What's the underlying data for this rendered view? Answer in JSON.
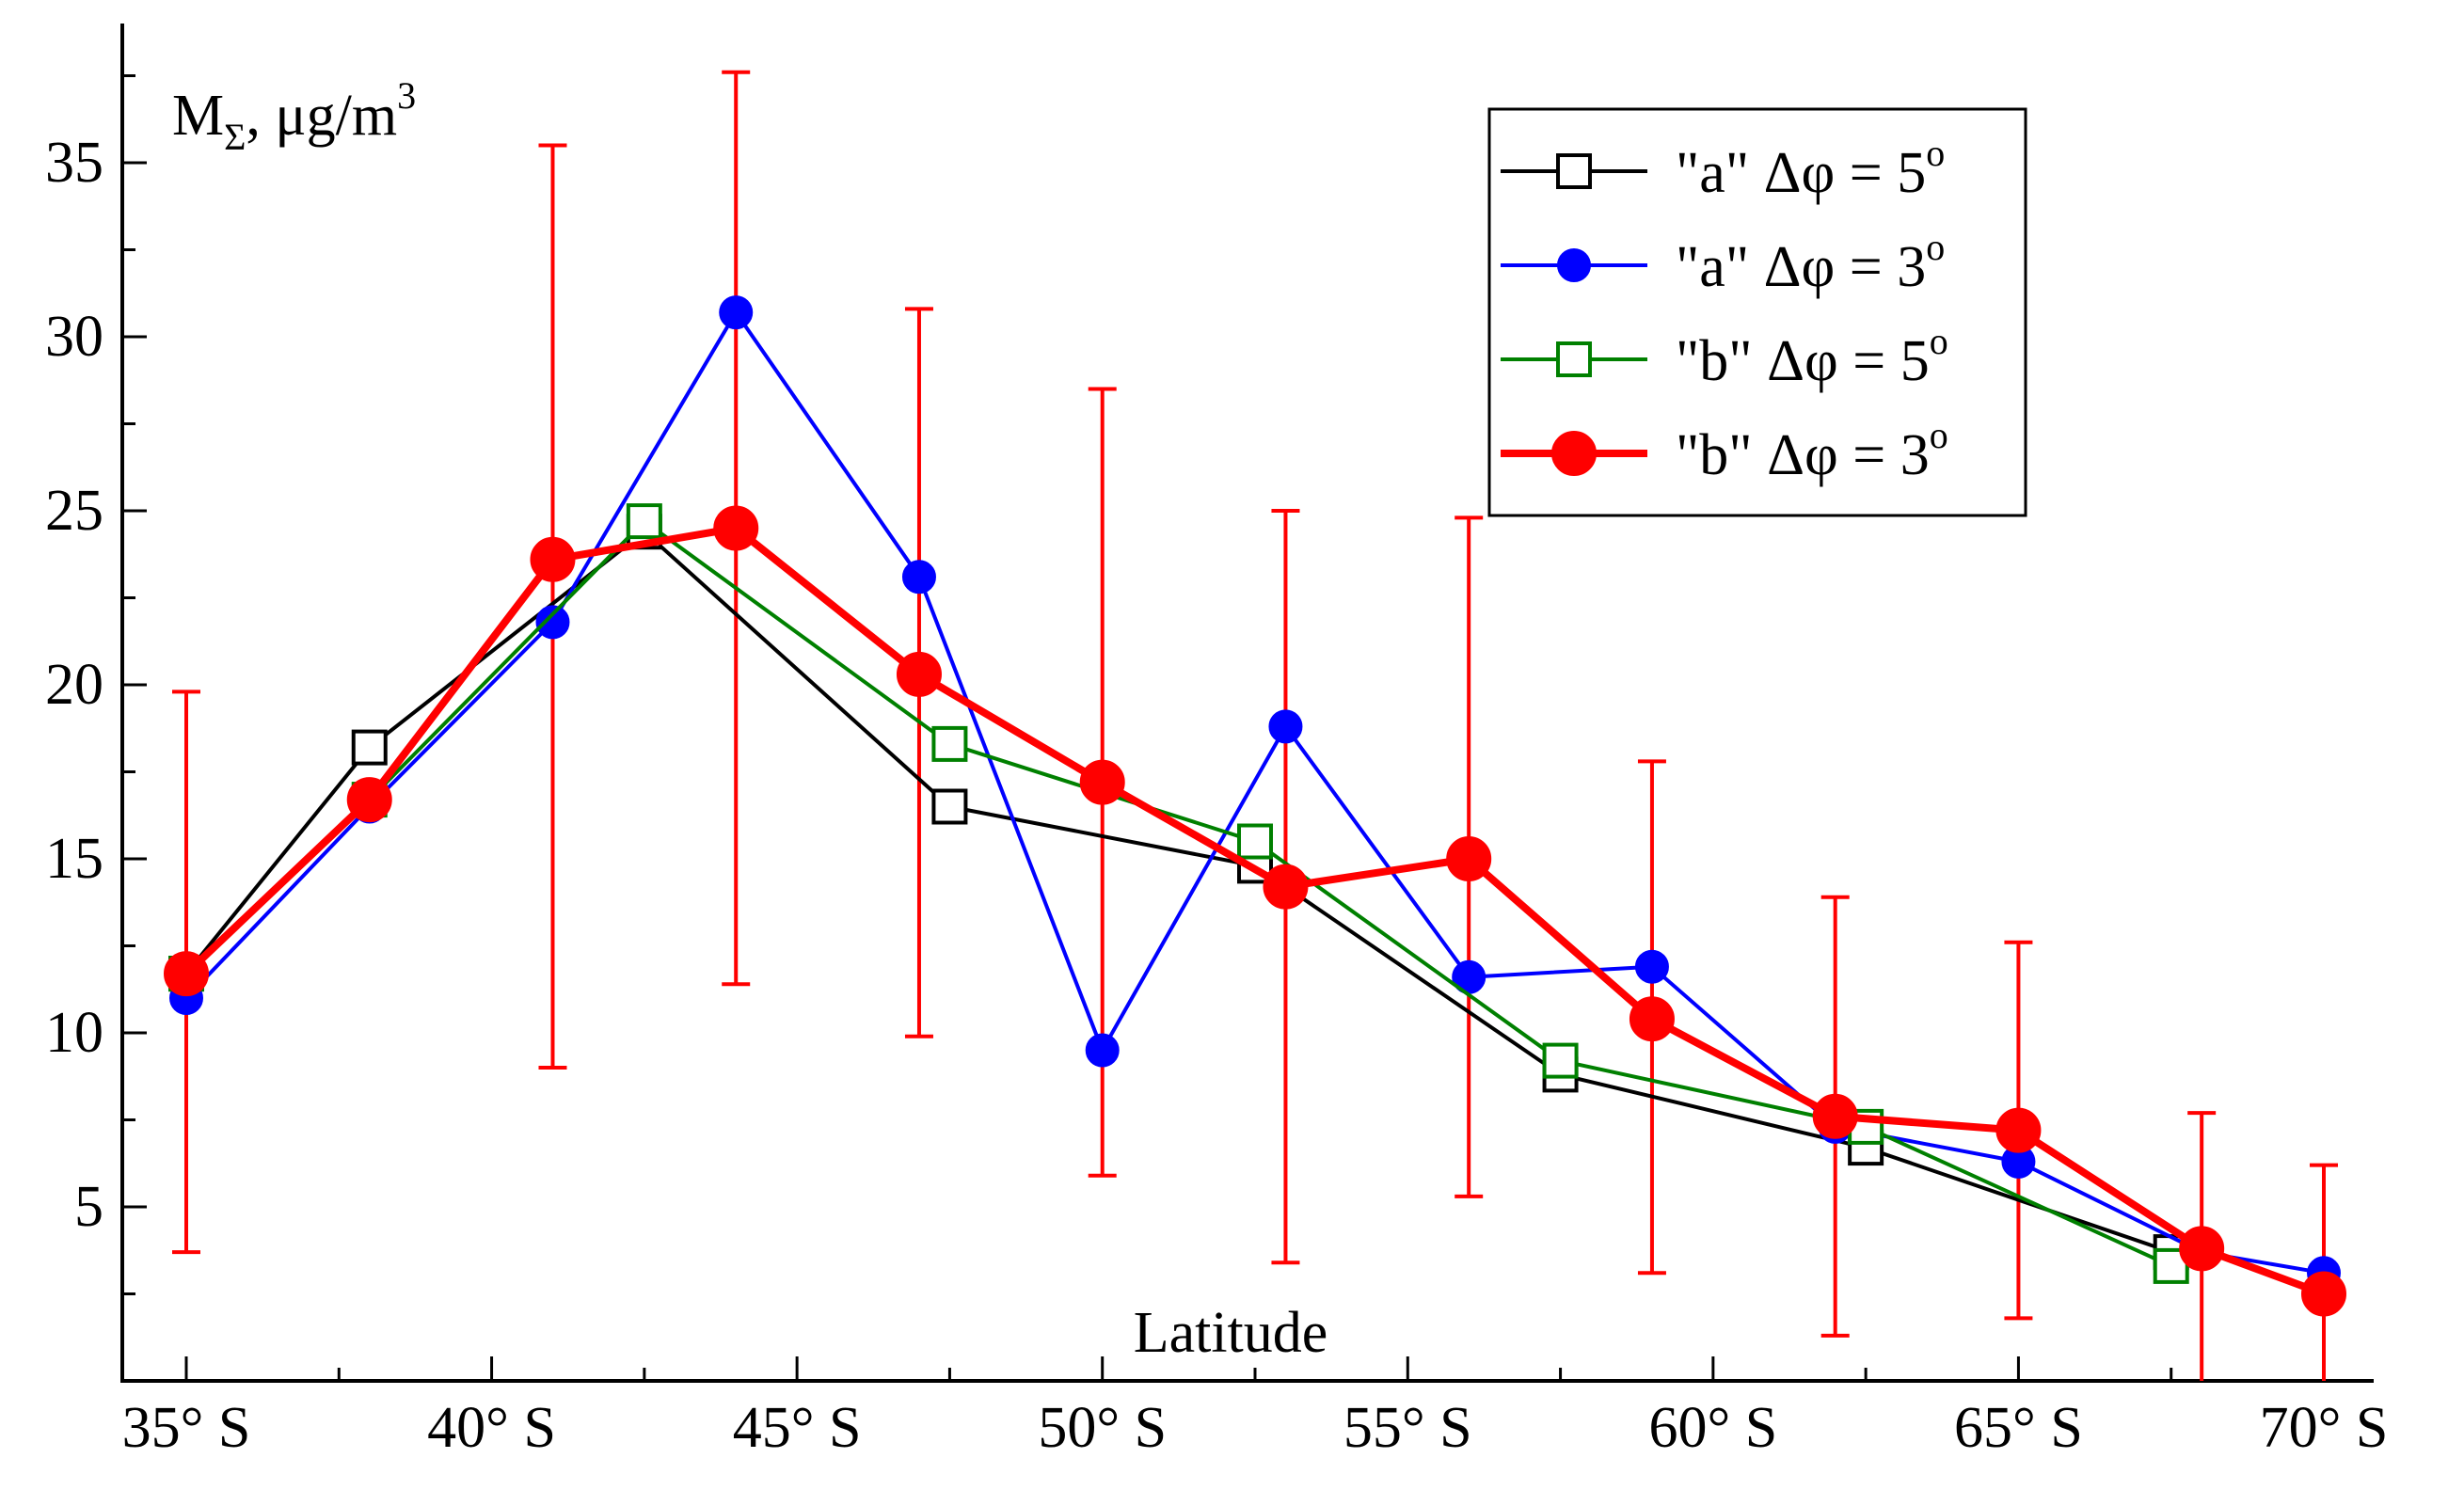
{
  "chart_data": {
    "type": "line",
    "title": "",
    "ylabel_main": "M",
    "ylabel_sub": "Σ",
    "ylabel_unit": ", μg/m",
    "ylabel_sup": "3",
    "xlabel": "Latitude",
    "xlim": [
      35,
      70
    ],
    "ylim": [
      0,
      39
    ],
    "x_ticks": [
      35,
      40,
      45,
      50,
      55,
      60,
      65,
      70
    ],
    "x_tick_labels": [
      "35° S",
      "40° S",
      "45° S",
      "50° S",
      "55° S",
      "60° S",
      "65° S",
      "70° S"
    ],
    "y_ticks": [
      5,
      10,
      15,
      20,
      25,
      30,
      35
    ],
    "y_tick_labels": [
      "5",
      "10",
      "15",
      "20",
      "25",
      "30",
      "35"
    ],
    "legend_position": "top-right",
    "series": [
      {
        "name": "a5",
        "label_main": "\"a\" Δφ = 5",
        "label_sup": "o",
        "color": "#000000",
        "marker": "square-open",
        "x": [
          35,
          38,
          42.5,
          47.5,
          52.5,
          57.5,
          62.5,
          67.5
        ],
        "y": [
          11.7,
          18.2,
          24.4,
          16.5,
          14.8,
          8.8,
          6.7,
          3.7
        ]
      },
      {
        "name": "a3",
        "label_main": "\"a\" Δφ = 3",
        "label_sup": "o",
        "color": "#0000ff",
        "marker": "circle-filled",
        "x": [
          35,
          38,
          41,
          44,
          47,
          50,
          53,
          56,
          59,
          62,
          65,
          68,
          70
        ],
        "y": [
          11.0,
          16.5,
          21.8,
          30.7,
          23.1,
          9.5,
          18.8,
          11.6,
          11.9,
          7.3,
          6.3,
          3.7,
          3.1
        ]
      },
      {
        "name": "b5",
        "label_main": "\"b\" Δφ = 5",
        "label_sup": "o",
        "color": "#008000",
        "marker": "square-open",
        "x": [
          35,
          38,
          42.5,
          47.5,
          52.5,
          57.5,
          62.5,
          67.5
        ],
        "y": [
          11.7,
          16.7,
          24.7,
          18.3,
          15.5,
          9.2,
          7.3,
          3.3
        ]
      },
      {
        "name": "b3",
        "label_main": "\"b\" Δφ = 3",
        "label_sup": "o",
        "color": "#ff0000",
        "marker": "circle-filled-large",
        "x": [
          35,
          38,
          41,
          44,
          47,
          50,
          53,
          56,
          59,
          62,
          65,
          68,
          70
        ],
        "y": [
          11.7,
          16.7,
          23.6,
          24.5,
          20.3,
          17.2,
          14.2,
          15.0,
          10.4,
          7.6,
          7.2,
          3.8,
          2.5
        ],
        "err_low": [
          3.7,
          null,
          9.0,
          11.4,
          9.9,
          5.9,
          3.4,
          5.3,
          3.1,
          1.3,
          1.8,
          0.0,
          0.0
        ],
        "err_high": [
          19.8,
          null,
          35.5,
          37.6,
          30.8,
          28.5,
          25.0,
          24.8,
          17.8,
          13.9,
          12.6,
          7.7,
          6.2
        ]
      }
    ]
  }
}
